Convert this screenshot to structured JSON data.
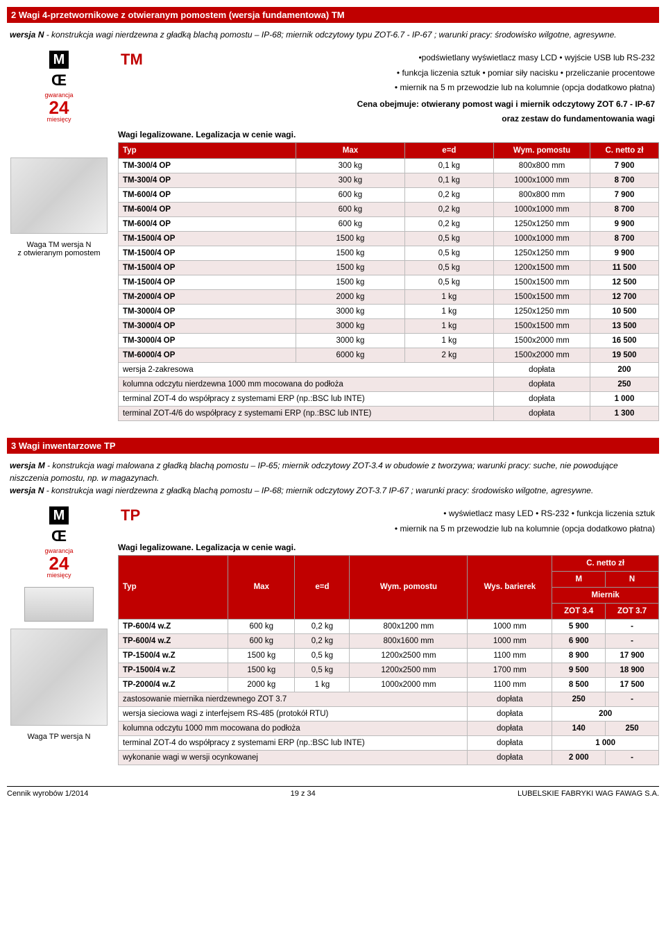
{
  "section1": {
    "header": "2  Wagi 4-przetwornikowe z otwieranym pomostem (wersja fundamentowa) TM",
    "intro_vname": "wersja N",
    "intro_rest": "  - konstrukcja wagi nierdzewna z gładką blachą pomostu – IP-68;  miernik odczytowy typu ZOT-6.7 - IP-67 ; warunki pracy: środowisko wilgotne, agresywne.",
    "model": "TM",
    "bullets_l1": "•podświetlany wyświetlacz masy LCD • wyjście USB lub RS-232",
    "bullets_l2": "• funkcja liczenia sztuk   • pomiar siły nacisku • przeliczanie procentowe",
    "bullets_l3": "• miernik na 5 m przewodzie lub na kolumnie (opcja dodatkowo płatna)",
    "cena_l1": "Cena obejmuje: otwierany pomost wagi i miernik odczytowy ZOT 6.7 - IP-67",
    "cena_l2": "oraz zestaw do fundamentowania wagi",
    "legal": "Wagi legalizowane. Legalizacja w cenie wagi.",
    "cols": {
      "c1": "Typ",
      "c2": "Max",
      "c3": "e=d",
      "c4": "Wym. pomostu",
      "c5": "C. netto zł"
    },
    "rows": [
      {
        "t": "TM-300/4 OP",
        "m": "300 kg",
        "e": "0,1 kg",
        "w": "800x800 mm",
        "p": "7 900",
        "alt": false
      },
      {
        "t": "TM-300/4 OP",
        "m": "300 kg",
        "e": "0,1 kg",
        "w": "1000x1000 mm",
        "p": "8 700",
        "alt": true
      },
      {
        "t": "TM-600/4 OP",
        "m": "600 kg",
        "e": "0,2 kg",
        "w": "800x800 mm",
        "p": "7 900",
        "alt": false
      },
      {
        "t": "TM-600/4 OP",
        "m": "600 kg",
        "e": "0,2 kg",
        "w": "1000x1000 mm",
        "p": "8 700",
        "alt": true
      },
      {
        "t": "TM-600/4 OP",
        "m": "600 kg",
        "e": "0,2 kg",
        "w": "1250x1250 mm",
        "p": "9 900",
        "alt": false
      },
      {
        "t": "TM-1500/4 OP",
        "m": "1500 kg",
        "e": "0,5 kg",
        "w": "1000x1000 mm",
        "p": "8 700",
        "alt": true
      },
      {
        "t": "TM-1500/4 OP",
        "m": "1500 kg",
        "e": "0,5 kg",
        "w": "1250x1250 mm",
        "p": "9 900",
        "alt": false
      },
      {
        "t": "TM-1500/4 OP",
        "m": "1500 kg",
        "e": "0,5 kg",
        "w": "1200x1500 mm",
        "p": "11 500",
        "alt": true
      },
      {
        "t": "TM-1500/4 OP",
        "m": "1500 kg",
        "e": "0,5 kg",
        "w": "1500x1500 mm",
        "p": "12 500",
        "alt": false
      },
      {
        "t": "TM-2000/4 OP",
        "m": "2000 kg",
        "e": "1 kg",
        "w": "1500x1500 mm",
        "p": "12 700",
        "alt": true
      },
      {
        "t": "TM-3000/4 OP",
        "m": "3000 kg",
        "e": "1 kg",
        "w": "1250x1250 mm",
        "p": "10 500",
        "alt": false
      },
      {
        "t": "TM-3000/4 OP",
        "m": "3000 kg",
        "e": "1 kg",
        "w": "1500x1500 mm",
        "p": "13 500",
        "alt": true
      },
      {
        "t": "TM-3000/4 OP",
        "m": "3000 kg",
        "e": "1 kg",
        "w": "1500x2000 mm",
        "p": "16 500",
        "alt": false
      },
      {
        "t": "TM-6000/4 OP",
        "m": "6000 kg",
        "e": "2 kg",
        "w": "1500x2000 mm",
        "p": "19 500",
        "alt": true
      }
    ],
    "extras": [
      {
        "t": "wersja 2-zakresowa",
        "d": "dopłata",
        "p": "200",
        "alt": false
      },
      {
        "t": "kolumna odczytu nierdzewna 1000 mm mocowana do podłoża",
        "d": "dopłata",
        "p": "250",
        "alt": true
      },
      {
        "t": "terminal ZOT-4 do współpracy z systemami ERP (np.:BSC lub INTE)",
        "d": "dopłata",
        "p": "1 000",
        "alt": false
      },
      {
        "t": "terminal ZOT-4/6 do współpracy z systemami ERP (np.:BSC lub INTE)",
        "d": "dopłata",
        "p": "1 300",
        "alt": true
      }
    ],
    "caption": "Waga TM wersja N\nz otwieranym pomostem"
  },
  "section2": {
    "header": "3  Wagi inwentarzowe TP",
    "intro1_vname": "wersja M",
    "intro1_rest": "  - konstrukcja wagi malowana z gładką blachą pomostu – IP-65; miernik odczytowy ZOT-3.4 w obudowie z tworzywa;  warunki pracy: suche, nie powodujące niszczenia pomostu, np. w magazynach.",
    "intro2_vname": "wersja N",
    "intro2_rest": "  - konstrukcja wagi nierdzewna z gładką blachą pomostu – IP-68;  miernik odczytowy ZOT-3.7 IP-67 ; warunki pracy: środowisko wilgotne, agresywne.",
    "model": "TP",
    "bullets_l1": "• wyświetlacz masy LED • RS-232 • funkcja liczenia sztuk",
    "bullets_l2": "• miernik na 5 m przewodzie lub na kolumnie (opcja dodatkowo płatna)",
    "legal": "Wagi legalizowane. Legalizacja w cenie wagi.",
    "cols": {
      "c1": "Typ",
      "c2": "Max",
      "c3": "e=d",
      "c4": "Wym. pomostu",
      "c5": "Wys. barierek",
      "c6": "C. netto zł",
      "c7": "M",
      "c8": "N",
      "c9": "Miernik",
      "c10": "ZOT 3.4",
      "c11": "ZOT 3.7"
    },
    "rows": [
      {
        "t": "TP-600/4 w.Z",
        "m": "600 kg",
        "e": "0,2 kg",
        "w": "800x1200 mm",
        "h": "1000 mm",
        "pm": "5 900",
        "pn": "-",
        "alt": false
      },
      {
        "t": "TP-600/4 w.Z",
        "m": "600 kg",
        "e": "0,2 kg",
        "w": "800x1600 mm",
        "h": "1000 mm",
        "pm": "6 900",
        "pn": "-",
        "alt": true
      },
      {
        "t": "TP-1500/4 w.Z",
        "m": "1500 kg",
        "e": "0,5 kg",
        "w": "1200x2500 mm",
        "h": "1100 mm",
        "pm": "8 900",
        "pn": "17 900",
        "alt": false
      },
      {
        "t": "TP-1500/4 w.Z",
        "m": "1500 kg",
        "e": "0,5 kg",
        "w": "1200x2500 mm",
        "h": "1700 mm",
        "pm": "9 500",
        "pn": "18 900",
        "alt": true
      },
      {
        "t": "TP-2000/4 w.Z",
        "m": "2000 kg",
        "e": "1 kg",
        "w": "1000x2000 mm",
        "h": "1100 mm",
        "pm": "8 500",
        "pn": "17 500",
        "alt": false
      }
    ],
    "extras": [
      {
        "t": "zastosowanie miernika nierdzewnego ZOT 3.7",
        "d": "dopłata",
        "pm": "250",
        "pn": "-",
        "alt": true
      },
      {
        "t": "wersja sieciowa wagi z interfejsem RS-485 (protokół RTU)",
        "d": "dopłata",
        "pm": "200",
        "pn": "",
        "span": true,
        "alt": false
      },
      {
        "t": "kolumna odczytu 1000 mm mocowana do podłoża",
        "d": "dopłata",
        "pm": "140",
        "pn": "250",
        "alt": true
      },
      {
        "t": "terminal ZOT-4 do współpracy z systemami ERP (np.:BSC lub INTE)",
        "d": "dopłata",
        "pm": "1 000",
        "pn": "",
        "span": true,
        "alt": false
      },
      {
        "t": "wykonanie wagi w wersji ocynkowanej",
        "d": "dopłata",
        "pm": "2 000",
        "pn": "-",
        "alt": true
      }
    ],
    "caption": "Waga TP wersja N"
  },
  "footer": {
    "left": "Cennik wyrobów 1/2014",
    "mid": "19 z 34",
    "right": "LUBELSKIE FABRYKI WAG FAWAG S.A."
  },
  "badges": {
    "m": "M",
    "ce": "Œ",
    "gwar_top": "gwarancja",
    "gwar_num": "24",
    "gwar_bot": "miesięcy"
  }
}
